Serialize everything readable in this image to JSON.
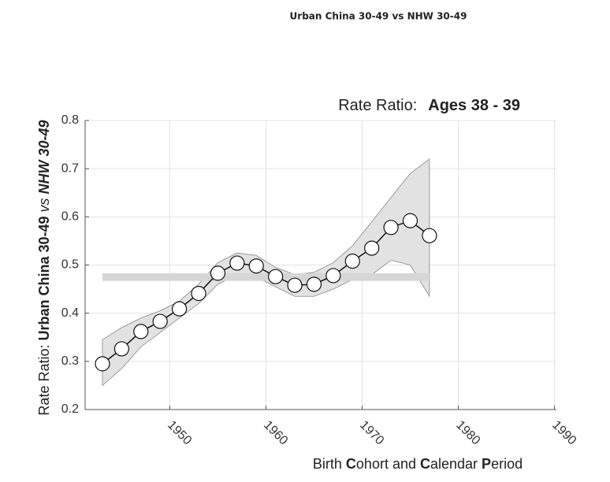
{
  "chart_data": {
    "type": "line",
    "page_title": "Urban China 30-49 vs NHW 30-49",
    "title_parts": [
      "Rate Ratio:",
      "Ages 38 - 39"
    ],
    "ylabel_parts": [
      "Rate Ratio: ",
      "Urban China 30-49",
      " vs ",
      "NHW 30-49"
    ],
    "xlabel_parts": [
      "Birth ",
      "C",
      "ohort and ",
      "C",
      "alendar ",
      "P",
      "eriod"
    ],
    "x": [
      1943,
      1945,
      1947,
      1949,
      1951,
      1953,
      1955,
      1957,
      1959,
      1961,
      1963,
      1965,
      1967,
      1969,
      1971,
      1973,
      1975,
      1977
    ],
    "values": [
      0.295,
      0.326,
      0.362,
      0.383,
      0.409,
      0.441,
      0.483,
      0.504,
      0.498,
      0.476,
      0.458,
      0.46,
      0.478,
      0.508,
      0.535,
      0.578,
      0.592,
      0.561
    ],
    "upper": [
      0.345,
      0.37,
      0.39,
      0.405,
      0.425,
      0.46,
      0.505,
      0.525,
      0.52,
      0.495,
      0.48,
      0.485,
      0.505,
      0.54,
      0.59,
      0.64,
      0.69,
      0.72
    ],
    "lower": [
      0.25,
      0.285,
      0.33,
      0.36,
      0.39,
      0.42,
      0.46,
      0.48,
      0.475,
      0.455,
      0.435,
      0.435,
      0.45,
      0.47,
      0.48,
      0.51,
      0.5,
      0.435
    ],
    "reference_band": {
      "x": [
        1943,
        1977
      ],
      "y": [
        0.467,
        0.483
      ]
    },
    "line_color": "#111111",
    "band_color": "#e2e2e2",
    "reference_color": "#d6d6d6",
    "xlim": [
      1941.2,
      1990.2
    ],
    "xticks": [
      1950,
      1960,
      1970,
      1980,
      1990
    ],
    "ylim": [
      0.2,
      0.8
    ],
    "yticks": [
      0.2,
      0.3,
      0.4,
      0.5,
      0.6,
      0.7,
      0.8
    ],
    "grid": true
  }
}
